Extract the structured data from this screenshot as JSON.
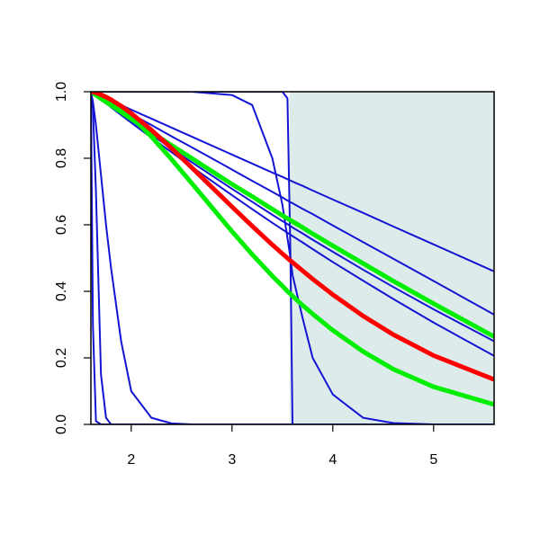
{
  "chart_data": {
    "type": "line",
    "x": [
      1.6,
      1.62,
      1.65,
      1.7,
      1.75,
      1.8,
      1.9,
      2.0,
      2.2,
      2.4,
      2.6,
      3.0,
      3.2,
      3.4,
      3.5,
      3.55,
      3.58,
      3.6,
      3.7,
      3.8,
      4.0,
      4.3,
      4.6,
      5.0,
      5.6
    ],
    "xlim": [
      1.6,
      5.6
    ],
    "ylim": [
      0,
      1
    ],
    "xticks": [
      2,
      3,
      4,
      5
    ],
    "yticks": [
      {
        "value": 0,
        "label": "0.0"
      },
      0.2,
      0.4,
      0.6,
      0.8,
      {
        "value": 1,
        "label": "1.0"
      }
    ],
    "shade": {
      "xlim": [
        3.57,
        5.6
      ],
      "color": "#deebeb"
    },
    "series": [
      {
        "color": "#1414d4",
        "linewidth": 2,
        "values": [
          1,
          0.3,
          0.01,
          0,
          0,
          0,
          0,
          0,
          0,
          0,
          0,
          0,
          0,
          0,
          0,
          0,
          0,
          0,
          0,
          0,
          0,
          0,
          0,
          0,
          0
        ]
      },
      {
        "color": "#1414d4",
        "linewidth": 2,
        "values": [
          1,
          0.95,
          0.7,
          0.15,
          0.02,
          0,
          0,
          0,
          0,
          0,
          0,
          0,
          0,
          0,
          0,
          0,
          0,
          0,
          0,
          0,
          0,
          0,
          0,
          0,
          0
        ]
      },
      {
        "color": "#1414d4",
        "linewidth": 2,
        "values": [
          1,
          0.97,
          0.9,
          0.75,
          0.6,
          0.47,
          0.25,
          0.1,
          0.02,
          0.003,
          0,
          0,
          0,
          0,
          0,
          0,
          0,
          0,
          0,
          0,
          0,
          0,
          0,
          0,
          0
        ]
      },
      {
        "color": "#1414d4",
        "linewidth": 2,
        "values": [
          1,
          1,
          1,
          1,
          1,
          1,
          1,
          1,
          1,
          1,
          1,
          0.99,
          0.96,
          0.8,
          0.66,
          0.56,
          0.5,
          0.45,
          0.32,
          0.2,
          0.09,
          0.02,
          0.004,
          0,
          0
        ]
      },
      {
        "color": "#1414d4",
        "linewidth": 2,
        "values": [
          1,
          1,
          1,
          1,
          1,
          1,
          1,
          1,
          1,
          1,
          1,
          1,
          1,
          1,
          1,
          0.98,
          0.5,
          0,
          0,
          0,
          0,
          0,
          0,
          0,
          0
        ]
      },
      {
        "color": "#1414d4",
        "linewidth": 2,
        "values": [
          1,
          0.997,
          0.993,
          0.987,
          0.98,
          0.973,
          0.96,
          0.946,
          0.919,
          0.892,
          0.865,
          0.811,
          0.784,
          0.757,
          0.744,
          0.737,
          0.733,
          0.73,
          0.717,
          0.703,
          0.676,
          0.636,
          0.595,
          0.541,
          0.46
        ]
      },
      {
        "color": "#1414d4",
        "linewidth": 2,
        "values": [
          1,
          0.997,
          0.992,
          0.983,
          0.975,
          0.967,
          0.95,
          0.933,
          0.9,
          0.866,
          0.833,
          0.766,
          0.732,
          0.699,
          0.682,
          0.673,
          0.668,
          0.665,
          0.648,
          0.632,
          0.598,
          0.548,
          0.498,
          0.431,
          0.33
        ]
      },
      {
        "color": "#1414d4",
        "linewidth": 2,
        "values": [
          1,
          0.996,
          0.989,
          0.978,
          0.967,
          0.956,
          0.935,
          0.913,
          0.871,
          0.829,
          0.788,
          0.708,
          0.669,
          0.63,
          0.611,
          0.602,
          0.596,
          0.592,
          0.574,
          0.555,
          0.519,
          0.465,
          0.413,
          0.346,
          0.25
        ]
      },
      {
        "color": "#1414d4",
        "linewidth": 2,
        "values": [
          1,
          0.995,
          0.988,
          0.977,
          0.965,
          0.953,
          0.93,
          0.907,
          0.862,
          0.818,
          0.774,
          0.689,
          0.647,
          0.606,
          0.586,
          0.576,
          0.57,
          0.566,
          0.547,
          0.527,
          0.488,
          0.432,
          0.377,
          0.306,
          0.206
        ]
      },
      {
        "color": "#00ee00",
        "linewidth": 5,
        "values": [
          1,
          0.996,
          0.99,
          0.979,
          0.969,
          0.959,
          0.939,
          0.918,
          0.878,
          0.839,
          0.8,
          0.722,
          0.685,
          0.647,
          0.628,
          0.619,
          0.614,
          0.61,
          0.592,
          0.573,
          0.537,
          0.484,
          0.431,
          0.363,
          0.264
        ]
      },
      {
        "color": "#00ee00",
        "linewidth": 5,
        "values": [
          1,
          0.999,
          0.997,
          0.991,
          0.984,
          0.974,
          0.952,
          0.926,
          0.865,
          0.797,
          0.725,
          0.58,
          0.511,
          0.446,
          0.416,
          0.4,
          0.392,
          0.386,
          0.358,
          0.332,
          0.283,
          0.219,
          0.166,
          0.113,
          0.06
        ]
      },
      {
        "color": "#ff0000",
        "linewidth": 5,
        "values": [
          1,
          0.999,
          0.997,
          0.991,
          0.984,
          0.976,
          0.957,
          0.935,
          0.885,
          0.83,
          0.772,
          0.654,
          0.596,
          0.54,
          0.513,
          0.5,
          0.492,
          0.487,
          0.462,
          0.437,
          0.39,
          0.326,
          0.27,
          0.207,
          0.135
        ]
      }
    ]
  }
}
